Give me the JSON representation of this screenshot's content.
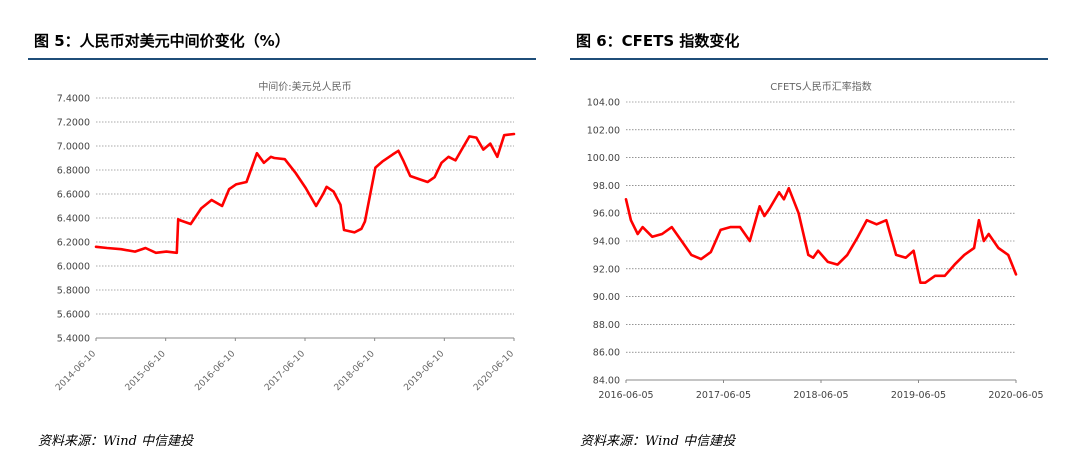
{
  "figures": [
    {
      "title": "图 5：人民币对美元中间价变化（%）",
      "source": "资料来源：Wind 中信建投",
      "chart_data": {
        "type": "line",
        "title": "中间价:美元兑人民币",
        "xlabel": "",
        "ylabel": "",
        "ylim": [
          5.4,
          7.4
        ],
        "yticks": [
          "7.4000",
          "7.2000",
          "7.0000",
          "6.8000",
          "6.6000",
          "6.4000",
          "6.2000",
          "6.0000",
          "5.8000",
          "5.6000",
          "5.4000"
        ],
        "xticks": [
          "2014-06-10",
          "2015-06-10",
          "2016-06-10",
          "2017-06-10",
          "2018-06-10",
          "2019-06-10",
          "2020-06-10"
        ],
        "xlim": [
          2014.44,
          2020.44
        ],
        "grid": true,
        "series": [
          {
            "name": "",
            "color": "#ff0000",
            "x": [
              2014.44,
              2014.6,
              2014.8,
              2015.0,
              2015.15,
              2015.3,
              2015.45,
              2015.6,
              2015.62,
              2015.65,
              2015.8,
              2015.95,
              2016.1,
              2016.25,
              2016.35,
              2016.45,
              2016.6,
              2016.75,
              2016.85,
              2016.95,
              2017.0,
              2017.15,
              2017.3,
              2017.45,
              2017.6,
              2017.7,
              2017.75,
              2017.85,
              2017.95,
              2018.0,
              2018.15,
              2018.25,
              2018.3,
              2018.45,
              2018.55,
              2018.7,
              2018.78,
              2018.85,
              2018.95,
              2019.1,
              2019.2,
              2019.3,
              2019.4,
              2019.5,
              2019.6,
              2019.7,
              2019.8,
              2019.9,
              2020.0,
              2020.1,
              2020.2,
              2020.3,
              2020.44
            ],
            "y": [
              6.16,
              6.15,
              6.14,
              6.12,
              6.15,
              6.11,
              6.12,
              6.11,
              6.39,
              6.38,
              6.35,
              6.48,
              6.55,
              6.5,
              6.64,
              6.68,
              6.7,
              6.94,
              6.86,
              6.91,
              6.9,
              6.89,
              6.78,
              6.65,
              6.5,
              6.6,
              6.66,
              6.62,
              6.51,
              6.3,
              6.28,
              6.31,
              6.37,
              6.82,
              6.87,
              6.93,
              6.96,
              6.88,
              6.75,
              6.72,
              6.7,
              6.74,
              6.86,
              6.91,
              6.88,
              6.98,
              7.08,
              7.07,
              6.97,
              7.02,
              6.91,
              7.09,
              7.1
            ]
          }
        ]
      }
    },
    {
      "title": "图 6：CFETS 指数变化",
      "source": "资料来源：Wind 中信建投",
      "chart_data": {
        "type": "line",
        "title": "CFETS人民币汇率指数",
        "xlabel": "",
        "ylabel": "",
        "ylim": [
          84,
          104
        ],
        "yticks": [
          "104.00",
          "102.00",
          "100.00",
          "98.00",
          "96.00",
          "94.00",
          "92.00",
          "90.00",
          "88.00",
          "86.00",
          "84.00"
        ],
        "xticks": [
          "2016-06-05",
          "2017-06-05",
          "2018-06-05",
          "2019-06-05",
          "2020-06-05"
        ],
        "xlim": [
          2016.43,
          2020.43
        ],
        "grid": true,
        "series": [
          {
            "name": "",
            "color": "#ff0000",
            "x": [
              2016.43,
              2016.48,
              2016.55,
              2016.6,
              2016.7,
              2016.8,
              2016.9,
              2017.0,
              2017.1,
              2017.2,
              2017.3,
              2017.4,
              2017.5,
              2017.6,
              2017.7,
              2017.8,
              2017.85,
              2017.9,
              2018.0,
              2018.05,
              2018.1,
              2018.2,
              2018.3,
              2018.35,
              2018.4,
              2018.5,
              2018.6,
              2018.7,
              2018.8,
              2018.9,
              2019.0,
              2019.1,
              2019.2,
              2019.3,
              2019.38,
              2019.45,
              2019.5,
              2019.6,
              2019.7,
              2019.8,
              2019.9,
              2020.0,
              2020.05,
              2020.1,
              2020.15,
              2020.25,
              2020.35,
              2020.43
            ],
            "y": [
              97.0,
              95.5,
              94.5,
              95.0,
              94.3,
              94.5,
              95.0,
              94.0,
              93.0,
              92.7,
              93.2,
              94.8,
              95.0,
              95.0,
              94.0,
              96.5,
              95.8,
              96.3,
              97.5,
              97.0,
              97.8,
              96.0,
              93.0,
              92.8,
              93.3,
              92.5,
              92.3,
              93.0,
              94.2,
              95.5,
              95.2,
              95.5,
              93.0,
              92.8,
              93.3,
              91.0,
              91.0,
              91.5,
              91.5,
              92.3,
              93.0,
              93.5,
              95.5,
              94.0,
              94.5,
              93.5,
              93.0,
              91.6
            ]
          }
        ]
      }
    }
  ]
}
